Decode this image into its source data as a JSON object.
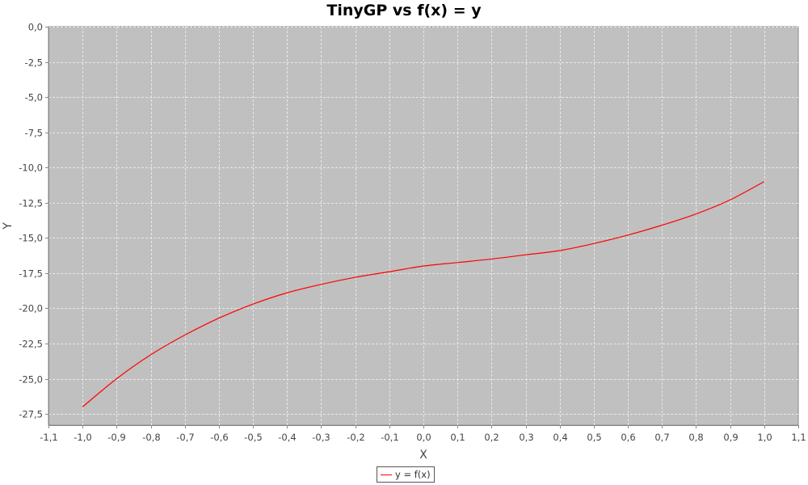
{
  "chart_data": {
    "type": "line",
    "title": "TinyGP vs f(x) = y",
    "xlabel": "X",
    "ylabel": "Y",
    "xlim": [
      -1.1,
      1.1
    ],
    "ylim": [
      -28.3,
      0
    ],
    "grid": true,
    "legend_position": "bottom-center",
    "x_ticks": [
      "-1,1",
      "-1,0",
      "-0,9",
      "-0,8",
      "-0,7",
      "-0,6",
      "-0,5",
      "-0,4",
      "-0,3",
      "-0,2",
      "-0,1",
      "0,0",
      "0,1",
      "0,2",
      "0,3",
      "0,4",
      "0,5",
      "0,6",
      "0,7",
      "0,8",
      "0,9",
      "1,0",
      "1,1"
    ],
    "x_tick_values": [
      -1.1,
      -1.0,
      -0.9,
      -0.8,
      -0.7,
      -0.6,
      -0.5,
      -0.4,
      -0.3,
      -0.2,
      -0.1,
      0.0,
      0.1,
      0.2,
      0.3,
      0.4,
      0.5,
      0.6,
      0.7,
      0.8,
      0.9,
      1.0,
      1.1
    ],
    "y_ticks": [
      "0,0",
      "-2,5",
      "-5,0",
      "-7,5",
      "-10,0",
      "-12,5",
      "-15,0",
      "-17,5",
      "-20,0",
      "-22,5",
      "-25,0",
      "-27,5"
    ],
    "y_tick_values": [
      0,
      -2.5,
      -5,
      -7.5,
      -10,
      -12.5,
      -15,
      -17.5,
      -20,
      -22.5,
      -25,
      -27.5
    ],
    "colors": {
      "plot_background": "#c0c0c0",
      "gridline": "#e8e8e8",
      "series": "#ff0000",
      "axis": "#888888"
    },
    "series": [
      {
        "name": "y = f(x)",
        "color": "#ff0000",
        "x": [
          -1.0,
          -0.9,
          -0.8,
          -0.7,
          -0.6,
          -0.5,
          -0.4,
          -0.3,
          -0.2,
          -0.1,
          0.0,
          0.1,
          0.2,
          0.3,
          0.4,
          0.5,
          0.6,
          0.7,
          0.8,
          0.9,
          1.0
        ],
        "y": [
          -27.0,
          -25.0,
          -23.3,
          -21.9,
          -20.7,
          -19.7,
          -18.9,
          -18.3,
          -17.8,
          -17.4,
          -17.0,
          -16.75,
          -16.5,
          -16.2,
          -15.9,
          -15.4,
          -14.8,
          -14.1,
          -13.3,
          -12.3,
          -11.0
        ]
      }
    ]
  }
}
